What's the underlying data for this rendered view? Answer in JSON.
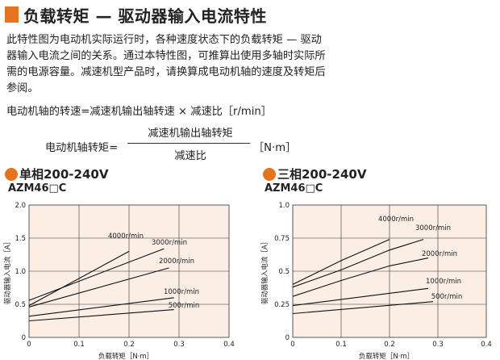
{
  "header": {
    "title": "负载转矩 — 驱动器输入电流特性"
  },
  "intro": [
    "此特性图为电动机实际运行时，各种速度状态下的负载转矩 — 驱动",
    "器输入电流之间的关系。通过本特性图，可推算出使用多轴时实际所",
    "需的电源容量。减速机型产品时，请换算成电动机轴的速度及转矩后",
    "参阅。"
  ],
  "formula_speed": "电动机轴的转速=减速机输出轴转速 × 减速比［r/min］",
  "formula_torque": {
    "left": "电动机轴转矩=",
    "numerator": "减速机输出轴转矩",
    "denominator": "减速比",
    "unit": "［N·m］"
  },
  "colors": {
    "accent": "#e8731e",
    "plot_bg": "#fbeee4",
    "line": "#111111"
  },
  "chart_data": [
    {
      "type": "line",
      "heading": "单相200-240V",
      "model": "AZM46□C",
      "xlabel": "负载转矩［N·m］",
      "ylabel": "驱动器输入电流［A］",
      "xlim": [
        0,
        0.4
      ],
      "ylim": [
        0,
        2.0
      ],
      "xticks": [
        "0",
        "0.1",
        "0.2",
        "0.3",
        "0.4"
      ],
      "yticks": [
        "0",
        "0.5",
        "1.0",
        "1.5",
        "2.0"
      ],
      "grid": true,
      "series": [
        {
          "name": "4000r/min",
          "x": [
            0,
            0.2
          ],
          "y": [
            0.48,
            1.3
          ]
        },
        {
          "name": "3000r/min",
          "x": [
            0,
            0.27
          ],
          "y": [
            0.56,
            1.34
          ]
        },
        {
          "name": "2000r/min",
          "x": [
            0,
            0.28
          ],
          "y": [
            0.46,
            1.05
          ]
        },
        {
          "name": "1000r/min",
          "x": [
            0,
            0.29
          ],
          "y": [
            0.32,
            0.6
          ]
        },
        {
          "name": "500r/min",
          "x": [
            0,
            0.29
          ],
          "y": [
            0.25,
            0.42
          ]
        }
      ]
    },
    {
      "type": "line",
      "heading": "三相200-240V",
      "model": "AZM46□C",
      "xlabel": "负载转矩［N·m］",
      "ylabel": "驱动器输入电流［A］",
      "xlim": [
        0,
        0.4
      ],
      "ylim": [
        0,
        1.0
      ],
      "xticks": [
        "0",
        "0.1",
        "0.2",
        "0.3",
        "0.4"
      ],
      "yticks": [
        "0",
        "0.25",
        "0.5",
        "0.75",
        "1.0"
      ],
      "grid": true,
      "series": [
        {
          "name": "4000r/min",
          "x": [
            0,
            0.05,
            0.1,
            0.15,
            0.2
          ],
          "y": [
            0.4,
            0.49,
            0.58,
            0.66,
            0.74
          ]
        },
        {
          "name": "3000r/min",
          "x": [
            0,
            0.1,
            0.2,
            0.27
          ],
          "y": [
            0.38,
            0.51,
            0.66,
            0.74
          ]
        },
        {
          "name": "2000r/min",
          "x": [
            0,
            0.1,
            0.2,
            0.28
          ],
          "y": [
            0.31,
            0.43,
            0.54,
            0.6
          ]
        },
        {
          "name": "1000r/min",
          "x": [
            0,
            0.28
          ],
          "y": [
            0.24,
            0.37
          ]
        },
        {
          "name": "500r/min",
          "x": [
            0,
            0.29
          ],
          "y": [
            0.18,
            0.27
          ]
        }
      ]
    }
  ]
}
